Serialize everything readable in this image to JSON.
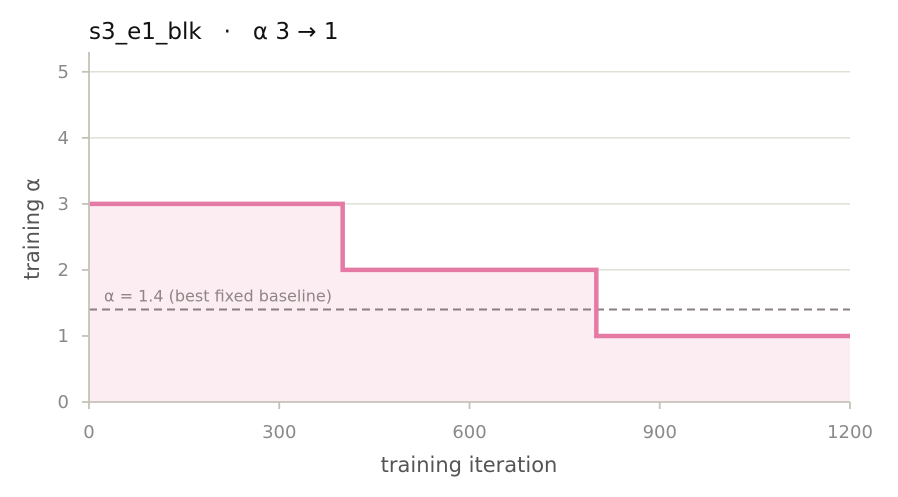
{
  "chart_data": {
    "type": "line",
    "title": "s3_e1_blk   ·   α 3 → 1",
    "xlabel": "training iteration",
    "ylabel": "training α",
    "xlim": [
      0,
      1200
    ],
    "ylim": [
      0,
      5.3
    ],
    "xticks": [
      0,
      300,
      600,
      900,
      1200
    ],
    "yticks": [
      0,
      1,
      2,
      3,
      4,
      5
    ],
    "grid": "horizontal",
    "step_schedule": {
      "x": [
        0,
        400,
        400,
        800,
        800,
        1200
      ],
      "y": [
        3,
        3,
        2,
        2,
        1,
        1
      ],
      "filled": true
    },
    "baseline": {
      "y": 1.4,
      "label": "α = 1.4 (best fixed baseline)",
      "style": "dashed"
    },
    "colors": {
      "series": "#e57ba4",
      "fill": "#fcedf3",
      "baseline": "#8a8080",
      "grid": "#dfe0d3",
      "axis": "#c4c2b8"
    }
  }
}
